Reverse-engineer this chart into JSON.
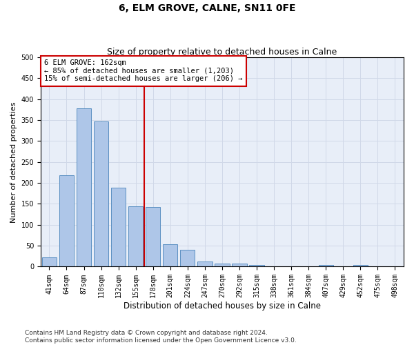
{
  "title": "6, ELM GROVE, CALNE, SN11 0FE",
  "subtitle": "Size of property relative to detached houses in Calne",
  "xlabel": "Distribution of detached houses by size in Calne",
  "ylabel": "Number of detached properties",
  "categories": [
    "41sqm",
    "64sqm",
    "87sqm",
    "110sqm",
    "132sqm",
    "155sqm",
    "178sqm",
    "201sqm",
    "224sqm",
    "247sqm",
    "270sqm",
    "292sqm",
    "315sqm",
    "338sqm",
    "361sqm",
    "384sqm",
    "407sqm",
    "429sqm",
    "452sqm",
    "475sqm",
    "498sqm"
  ],
  "values": [
    22,
    218,
    378,
    347,
    188,
    145,
    143,
    54,
    40,
    12,
    8,
    8,
    4,
    1,
    0,
    0,
    4,
    0,
    4,
    0,
    0
  ],
  "bar_color": "#aec6e8",
  "bar_edge_color": "#5a8fc2",
  "vline_x": 5.5,
  "vline_color": "#cc0000",
  "annotation_text": "6 ELM GROVE: 162sqm\n← 85% of detached houses are smaller (1,203)\n15% of semi-detached houses are larger (206) →",
  "annotation_box_color": "#ffffff",
  "annotation_box_edge_color": "#cc0000",
  "ylim": [
    0,
    500
  ],
  "yticks": [
    0,
    50,
    100,
    150,
    200,
    250,
    300,
    350,
    400,
    450,
    500
  ],
  "grid_color": "#d0d8e8",
  "bg_color": "#e8eef8",
  "footer": "Contains HM Land Registry data © Crown copyright and database right 2024.\nContains public sector information licensed under the Open Government Licence v3.0.",
  "title_fontsize": 10,
  "subtitle_fontsize": 9,
  "xlabel_fontsize": 8.5,
  "ylabel_fontsize": 8,
  "tick_fontsize": 7,
  "annotation_fontsize": 7.5,
  "footer_fontsize": 6.5
}
